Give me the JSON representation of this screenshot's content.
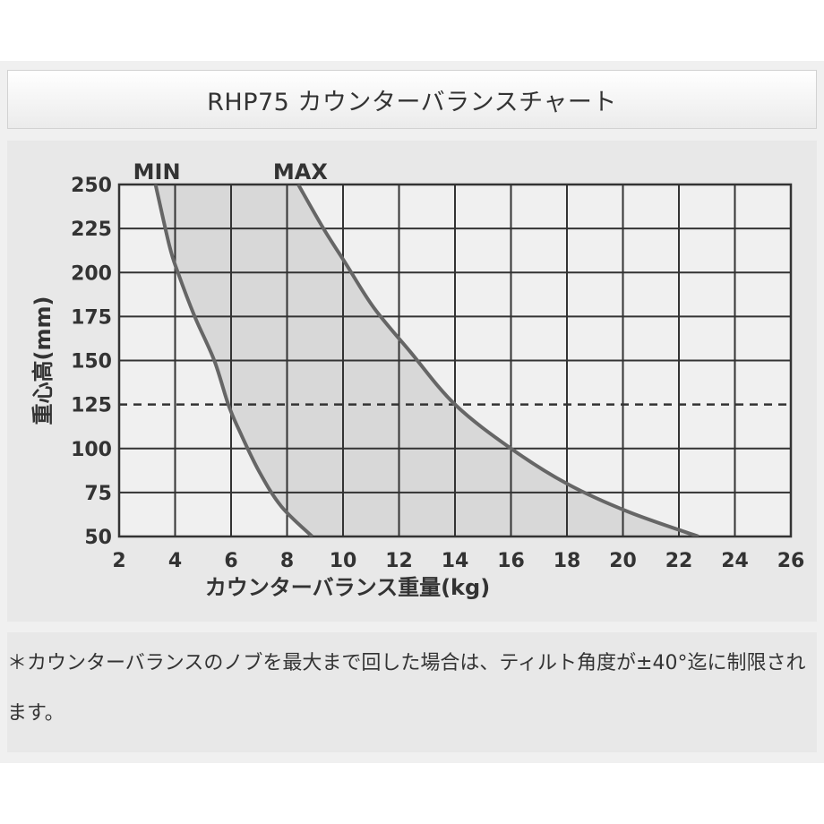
{
  "header": {
    "title": "RHP75 カウンターバランスチャート"
  },
  "note": {
    "text": "＊カウンターバランスのノブを最大まで回した場合は、ティルト角度が±40°迄に制限されます。"
  },
  "chart_data": {
    "type": "area",
    "title": "",
    "xlabel": "カウンターバランス重量(kg)",
    "ylabel": "重心高(mm)",
    "xlim": [
      2,
      26
    ],
    "ylim": [
      50,
      250
    ],
    "x_ticks": [
      "2",
      "4",
      "6",
      "8",
      "10",
      "12",
      "14",
      "16",
      "18",
      "20",
      "22",
      "24",
      "26"
    ],
    "y_ticks": [
      "50",
      "75",
      "100",
      "125",
      "150",
      "175",
      "200",
      "225",
      "250"
    ],
    "grid": true,
    "reference_line": {
      "y": 125,
      "style": "dashed"
    },
    "series": [
      {
        "name": "MIN",
        "points": [
          [
            3.3,
            250
          ],
          [
            3.8,
            215
          ],
          [
            4.1,
            200
          ],
          [
            4.7,
            175
          ],
          [
            5.4,
            150
          ],
          [
            5.9,
            125
          ],
          [
            6.3,
            110
          ],
          [
            7.0,
            87
          ],
          [
            7.8,
            67
          ],
          [
            8.9,
            50
          ]
        ]
      },
      {
        "name": "MAX",
        "points": [
          [
            8.4,
            250
          ],
          [
            9.3,
            225
          ],
          [
            10.1,
            205
          ],
          [
            11.1,
            180
          ],
          [
            12.4,
            155
          ],
          [
            14.0,
            125
          ],
          [
            16.0,
            100
          ],
          [
            18.0,
            80
          ],
          [
            20.2,
            64
          ],
          [
            22.7,
            50
          ]
        ]
      }
    ],
    "fill_between": [
      "MIN",
      "MAX"
    ],
    "colors": {
      "curve": "#666666",
      "band": "#d8d8d8",
      "grid": "#333333",
      "plot_bg": "#f0f0f0"
    }
  }
}
